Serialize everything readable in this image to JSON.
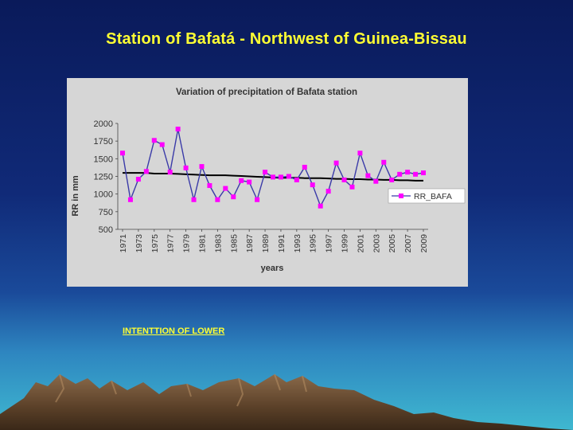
{
  "slide": {
    "title": "Station of Bafatá - Northwest of Guinea-Bissau",
    "footnote": "INTENTTION OF LOWER"
  },
  "colors": {
    "title_text": "#ffff33",
    "series_marker": "#ff00ff",
    "series_line": "#3a3aa8",
    "trend_line": "#000000",
    "panel_bg": "#d6d6d6"
  },
  "chart_data": {
    "type": "line",
    "title": "Variation of precipitation of Bafata station",
    "xlabel": "years",
    "ylabel": "RR in mm",
    "ylim": [
      500,
      2000
    ],
    "yticks": [
      500,
      750,
      1000,
      1250,
      1500,
      1750,
      2000
    ],
    "xtick_labels": [
      "1971",
      "1973",
      "1975",
      "1977",
      "1979",
      "1981",
      "1983",
      "1985",
      "1987",
      "1989",
      "1991",
      "1993",
      "1995",
      "1997",
      "1999",
      "2001",
      "2003",
      "2005",
      "2007",
      "2009"
    ],
    "grid": false,
    "legend_position": "right",
    "x": [
      1971,
      1972,
      1973,
      1974,
      1975,
      1976,
      1977,
      1978,
      1979,
      1980,
      1981,
      1982,
      1983,
      1984,
      1985,
      1986,
      1987,
      1988,
      1989,
      1990,
      1991,
      1992,
      1993,
      1994,
      1995,
      1996,
      1997,
      1998,
      1999,
      2000,
      2001,
      2002,
      2003,
      2004,
      2005,
      2006,
      2007,
      2008,
      2009
    ],
    "series": [
      {
        "name": "RR_BAFA",
        "values": [
          1580,
          920,
          1210,
          1320,
          1760,
          1700,
          1310,
          1920,
          1370,
          920,
          1390,
          1120,
          920,
          1080,
          960,
          1190,
          1170,
          920,
          1310,
          1240,
          1240,
          1250,
          1200,
          1380,
          1130,
          830,
          1040,
          1440,
          1200,
          1100,
          1580,
          1260,
          1180,
          1450,
          1200,
          1280,
          1310,
          1280,
          1300
        ]
      }
    ],
    "trend": {
      "values": [
        1300,
        1300,
        1300,
        1300,
        1290,
        1290,
        1290,
        1285,
        1280,
        1275,
        1270,
        1265,
        1265,
        1265,
        1260,
        1255,
        1250,
        1245,
        1240,
        1235,
        1230,
        1230,
        1230,
        1225,
        1225,
        1225,
        1220,
        1215,
        1215,
        1210,
        1210,
        1205,
        1205,
        1200,
        1200,
        1195,
        1195,
        1190,
        1190
      ]
    }
  }
}
